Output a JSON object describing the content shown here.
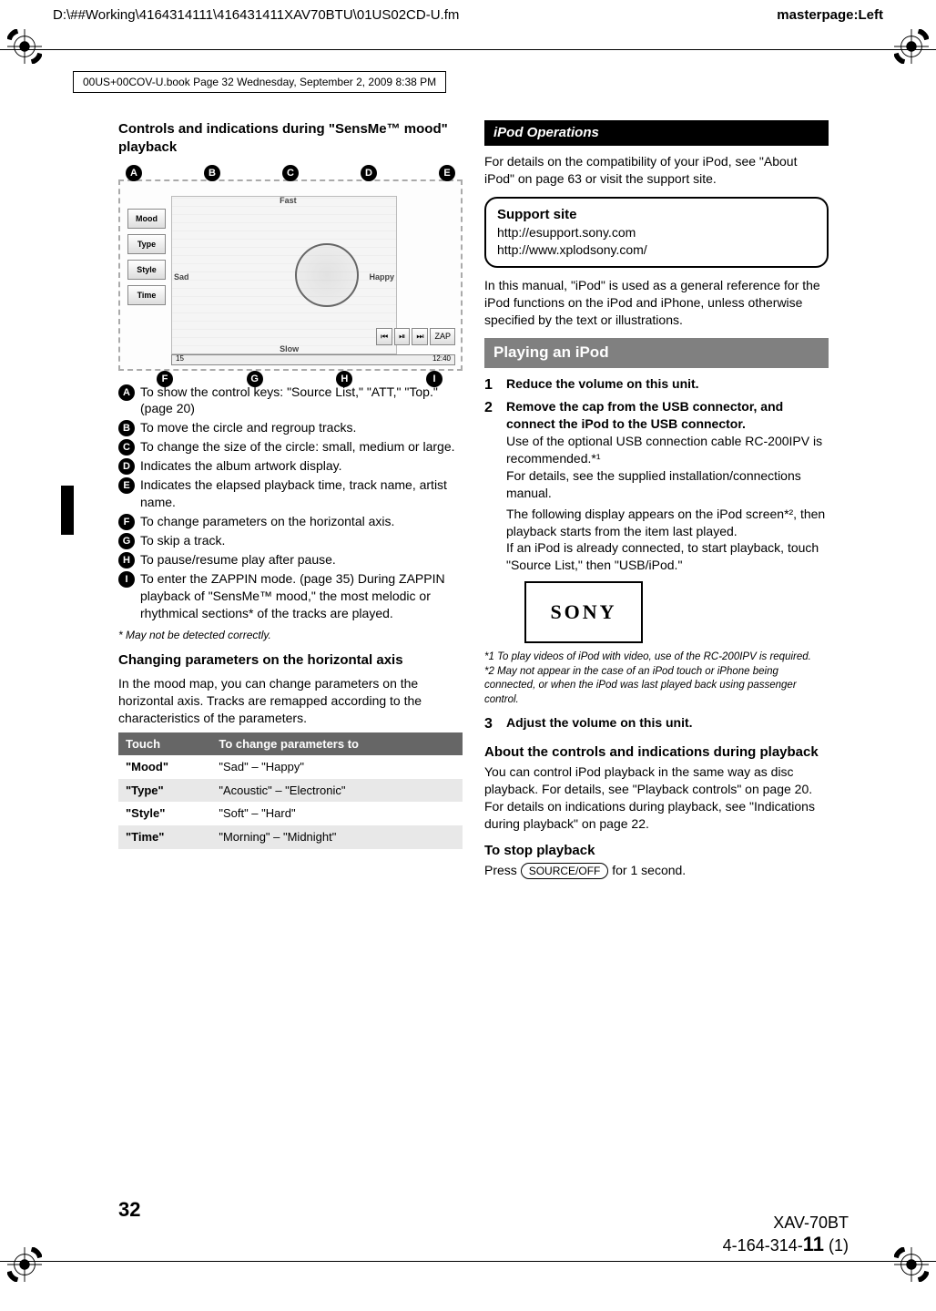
{
  "meta": {
    "filepath": "D:\\##Working\\4164314111\\416431411XAV70BTU\\01US02CD-U.fm",
    "masterpage": "masterpage:Left",
    "book_info": "00US+00COV-U.book  Page 32  Wednesday, September 2, 2009  8:38 PM",
    "page_number": "32",
    "model": "XAV-70BT",
    "part_number_prefix": "4-164-314-",
    "part_number_bold": "11",
    "part_number_suffix": " (1)"
  },
  "left_col": {
    "title": "Controls and indications during \"SensMe™ mood\" playback",
    "diagram": {
      "type": "infographic",
      "labels_top": [
        "A",
        "B",
        "C",
        "D",
        "E"
      ],
      "labels_bottom": [
        "F",
        "G",
        "H",
        "I"
      ],
      "side_buttons": [
        "Mood",
        "Type",
        "Style",
        "Time"
      ],
      "axis_labels": {
        "top": "Fast",
        "bottom": "Slow",
        "left": "Sad",
        "right": "Happy"
      },
      "zap_buttons": [
        "⏮",
        "⏯",
        "⏭",
        "ZAP"
      ],
      "track_left": "15",
      "track_right": "12:40",
      "colors": {
        "border": "#888888",
        "bg": "#f5f5f5",
        "circle": "#666666"
      }
    },
    "keys": [
      {
        "k": "A",
        "t": "To show the control keys: \"Source List,\" \"ATT,\" \"Top.\" (page 20)"
      },
      {
        "k": "B",
        "t": "To move the circle and regroup tracks."
      },
      {
        "k": "C",
        "t": "To change the size of the circle: small, medium or large."
      },
      {
        "k": "D",
        "t": "Indicates the album artwork display."
      },
      {
        "k": "E",
        "t": "Indicates the elapsed playback time, track name, artist name."
      },
      {
        "k": "F",
        "t": "To change parameters on the horizontal axis."
      },
      {
        "k": "G",
        "t": "To skip a track."
      },
      {
        "k": "H",
        "t": "To pause/resume play after pause."
      },
      {
        "k": "I",
        "t": "To enter the ZAPPIN mode. (page 35) During ZAPPIN playback of \"SensMe™ mood,\" the most melodic or rhythmical sections* of the tracks are played."
      }
    ],
    "footnote": "* May not be detected correctly.",
    "params_title": "Changing parameters on the horizontal axis",
    "params_intro": "In the mood map, you can change parameters on the horizontal axis. Tracks are remapped according to the characteristics of the parameters.",
    "table": {
      "headers": [
        "Touch",
        "To change parameters to"
      ],
      "rows": [
        [
          "\"Mood\"",
          "\"Sad\" – \"Happy\""
        ],
        [
          "\"Type\"",
          "\"Acoustic\" – \"Electronic\""
        ],
        [
          "\"Style\"",
          "\"Soft\" – \"Hard\""
        ],
        [
          "\"Time\"",
          "\"Morning\" – \"Midnight\""
        ]
      ]
    }
  },
  "right_col": {
    "ipod_ops_title": "iPod Operations",
    "ipod_ops_intro": "For details on the compatibility of your iPod, see \"About iPod\" on page 63 or visit the support site.",
    "support": {
      "title": "Support site",
      "line1": "http://esupport.sony.com",
      "line2": "http://www.xplodsony.com/"
    },
    "ipod_general": "In this manual, \"iPod\" is used as a general reference for the iPod functions on the iPod and iPhone, unless otherwise specified by the text or illustrations.",
    "playing_title": "Playing an iPod",
    "steps": [
      {
        "n": "1",
        "lead": "Reduce the volume on this unit.",
        "body": ""
      },
      {
        "n": "2",
        "lead": "Remove the cap from the USB connector, and connect the iPod to the USB connector.",
        "body": "Use of the optional USB connection cable RC-200IPV is recommended.*¹\nFor details, see the supplied installation/connections manual."
      },
      {
        "n": "",
        "lead": "",
        "body": "The following display appears on the iPod screen*², then playback starts from the item last played.\nIf an iPod is already connected, to start playback, touch \"Source List,\" then \"USB/iPod.\""
      }
    ],
    "sony_logo": "SONY",
    "notes": [
      "*1 To play videos of iPod with video, use of the RC-200IPV is required.",
      "*2 May not appear in the case of an iPod touch or iPhone being connected, or when the iPod was last played back using passenger control."
    ],
    "step3": {
      "n": "3",
      "lead": "Adjust the volume on this unit."
    },
    "about_title": "About the controls and indications during playback",
    "about_body": "You can control iPod playback in the same way as disc playback. For details, see \"Playback controls\" on page 20.\nFor details on indications during playback, see \"Indications during playback\" on page 22.",
    "stop_title": "To stop playback",
    "stop_prefix": "Press ",
    "stop_button": "SOURCE/OFF",
    "stop_suffix": " for 1 second."
  }
}
